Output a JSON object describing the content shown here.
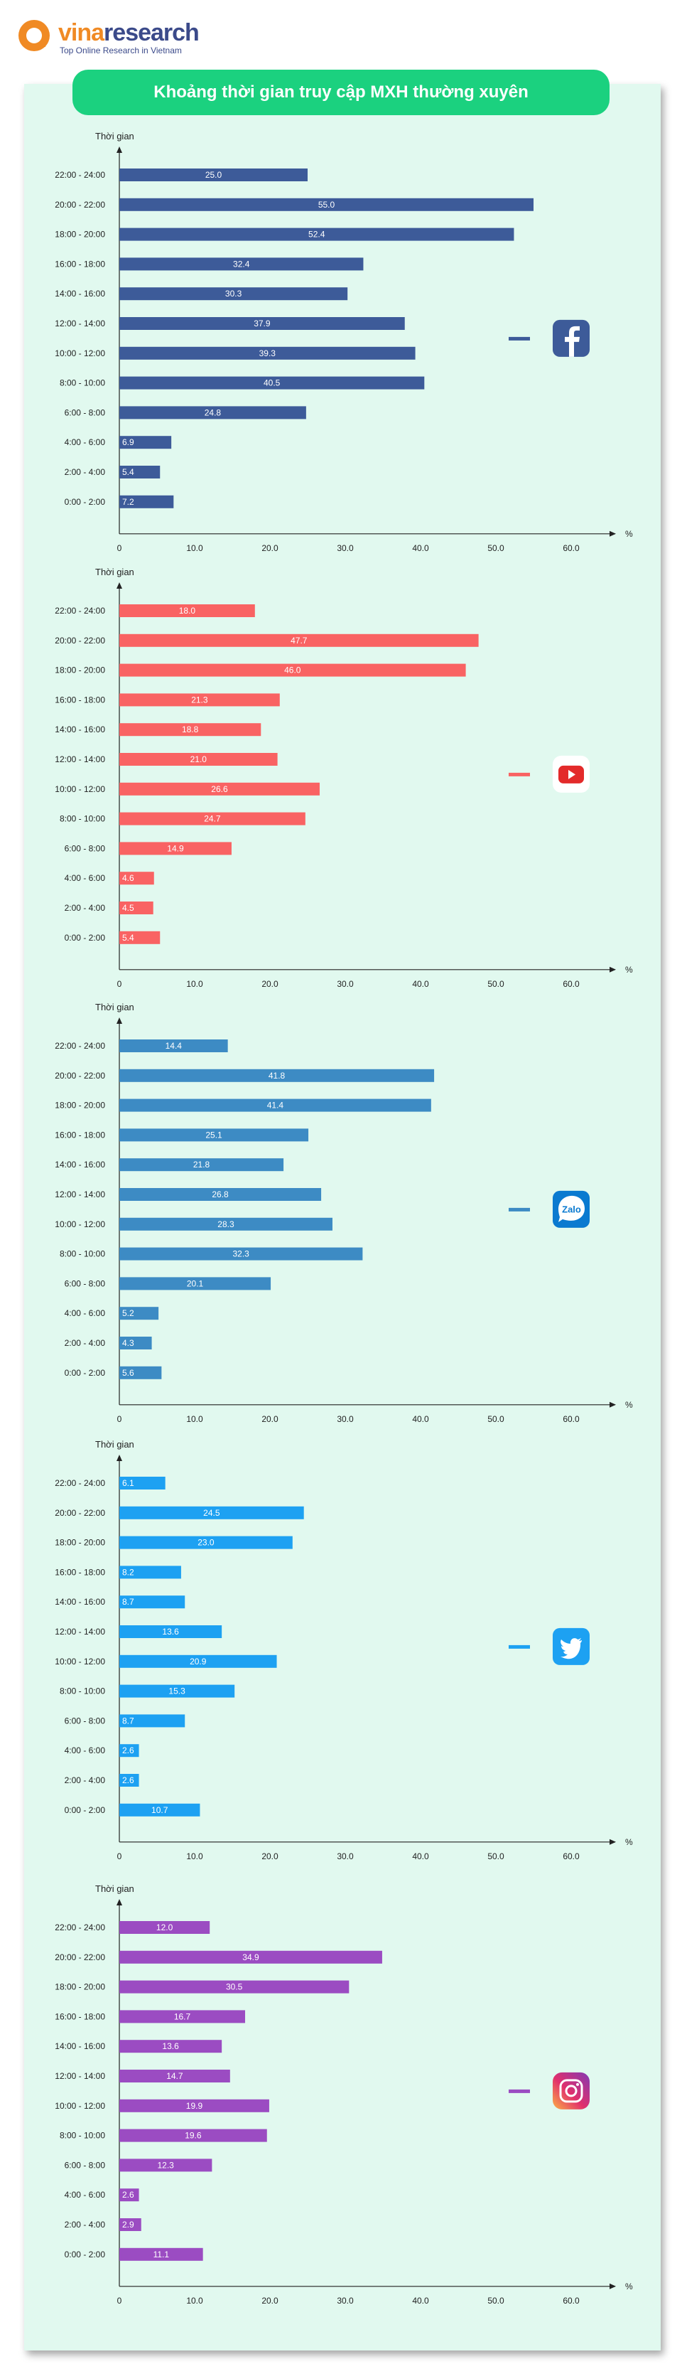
{
  "brand": {
    "name_part1": "vina",
    "name_part2": "research",
    "tagline": "Top Online Research in Vietnam",
    "accent": "#f08a24",
    "brand_blue": "#3b4a8a"
  },
  "title": "Khoảng thời gian truy cập MXH thường xuyên",
  "colors": {
    "title_bg": "#1bd17f",
    "panel_bg": "#e1f9ef"
  },
  "chart_data": [
    {
      "type": "bar",
      "orientation": "horizontal",
      "ylabel": "Thời gian",
      "xlabel": "%",
      "xlim": [
        0,
        60
      ],
      "xticks": [
        "0",
        "10.0",
        "20.0",
        "30.0",
        "40.0",
        "50.0",
        "60.0"
      ],
      "icon": "facebook-icon",
      "color": "#3d5b99",
      "categories": [
        "22:00 - 24:00",
        "20:00 - 22:00",
        "18:00 - 20:00",
        "16:00 - 18:00",
        "14:00 - 16:00",
        "12:00 - 14:00",
        "10:00 - 12:00",
        "8:00 - 10:00",
        "6:00 - 8:00",
        "4:00 - 6:00",
        "2:00 - 4:00",
        "0:00 - 2:00"
      ],
      "values": [
        25.0,
        55.0,
        52.4,
        32.4,
        30.3,
        37.9,
        39.3,
        40.5,
        24.8,
        6.9,
        5.4,
        7.2
      ],
      "value_labels": [
        "25.0",
        "55.0",
        "52.4",
        "32.4",
        "30.3",
        "37.9",
        "39.3",
        "40.5",
        "24.8",
        "6.9",
        "5.4",
        "7.2"
      ]
    },
    {
      "type": "bar",
      "orientation": "horizontal",
      "ylabel": "Thời gian",
      "xlabel": "%",
      "xlim": [
        0,
        60
      ],
      "xticks": [
        "0",
        "10.0",
        "20.0",
        "30.0",
        "40.0",
        "50.0",
        "60.0"
      ],
      "icon": "youtube-icon",
      "color": "#f96363",
      "categories": [
        "22:00 - 24:00",
        "20:00 - 22:00",
        "18:00 - 20:00",
        "16:00 - 18:00",
        "14:00 - 16:00",
        "12:00 - 14:00",
        "10:00 - 12:00",
        "8:00 - 10:00",
        "6:00 - 8:00",
        "4:00 - 6:00",
        "2:00 - 4:00",
        "0:00 - 2:00"
      ],
      "values": [
        18.0,
        47.7,
        46.0,
        21.3,
        18.8,
        21.0,
        26.6,
        24.7,
        14.9,
        4.6,
        4.5,
        5.4
      ],
      "value_labels": [
        "18.0",
        "47.7",
        "46.0",
        "21.3",
        "18.8",
        "21.0",
        "26.6",
        "24.7",
        "14.9",
        "4.6",
        "4.5",
        "5.4"
      ]
    },
    {
      "type": "bar",
      "orientation": "horizontal",
      "ylabel": "Thời gian",
      "xlabel": "%",
      "xlim": [
        0,
        60
      ],
      "xticks": [
        "0",
        "10.0",
        "20.0",
        "30.0",
        "40.0",
        "50.0",
        "60.0"
      ],
      "icon": "zalo-icon",
      "color": "#3d8bc4",
      "categories": [
        "22:00 - 24:00",
        "20:00 - 22:00",
        "18:00 - 20:00",
        "16:00 - 18:00",
        "14:00 - 16:00",
        "12:00 - 14:00",
        "10:00 - 12:00",
        "8:00 - 10:00",
        "6:00 - 8:00",
        "4:00 - 6:00",
        "2:00 - 4:00",
        "0:00 - 2:00"
      ],
      "values": [
        14.4,
        41.8,
        41.4,
        25.1,
        21.8,
        26.8,
        28.3,
        32.3,
        20.1,
        5.2,
        4.3,
        5.6
      ],
      "value_labels": [
        "14.4",
        "41.8",
        "41.4",
        "25.1",
        "21.8",
        "26.8",
        "28.3",
        "32.3",
        "20.1",
        "5.2",
        "4.3",
        "5.6"
      ]
    },
    {
      "type": "bar",
      "orientation": "horizontal",
      "ylabel": "Thời gian",
      "xlabel": "%",
      "xlim": [
        0,
        60
      ],
      "xticks": [
        "0",
        "10.0",
        "20.0",
        "30.0",
        "40.0",
        "50.0",
        "60.0"
      ],
      "icon": "twitter-icon",
      "color": "#1da1f2",
      "categories": [
        "22:00 - 24:00",
        "20:00 - 22:00",
        "18:00 - 20:00",
        "16:00 - 18:00",
        "14:00 - 16:00",
        "12:00 - 14:00",
        "10:00 - 12:00",
        "8:00 - 10:00",
        "6:00 - 8:00",
        "4:00 - 6:00",
        "2:00 - 4:00",
        "0:00 - 2:00"
      ],
      "values": [
        6.1,
        24.5,
        23.0,
        8.2,
        8.7,
        13.6,
        20.9,
        15.3,
        8.7,
        2.6,
        2.6,
        10.7
      ],
      "value_labels": [
        "6.1",
        "24.5",
        "23.0",
        "8.2",
        "8.7",
        "13.6",
        "20.9",
        "15.3",
        "8.7",
        "2.6",
        "2.6",
        "10.7"
      ]
    },
    {
      "type": "bar",
      "orientation": "horizontal",
      "ylabel": "Thời gian",
      "xlabel": "%",
      "xlim": [
        0,
        60
      ],
      "xticks": [
        "0",
        "10.0",
        "20.0",
        "30.0",
        "40.0",
        "50.0",
        "60.0"
      ],
      "icon": "instagram-icon",
      "color": "#9b4cc2",
      "categories": [
        "22:00 - 24:00",
        "20:00 - 22:00",
        "18:00 - 20:00",
        "16:00 - 18:00",
        "14:00 - 16:00",
        "12:00 - 14:00",
        "10:00 - 12:00",
        "8:00 - 10:00",
        "6:00 - 8:00",
        "4:00 - 6:00",
        "2:00 - 4:00",
        "0:00 - 2:00"
      ],
      "values": [
        12.0,
        34.9,
        30.5,
        16.7,
        13.6,
        14.7,
        19.9,
        19.6,
        12.3,
        2.6,
        2.9,
        11.1
      ],
      "value_labels": [
        "12.0",
        "34.9",
        "30.5",
        "16.7",
        "13.6",
        "14.7",
        "19.9",
        "19.6",
        "12.3",
        "2.6",
        "2.9",
        "11.1"
      ]
    }
  ]
}
